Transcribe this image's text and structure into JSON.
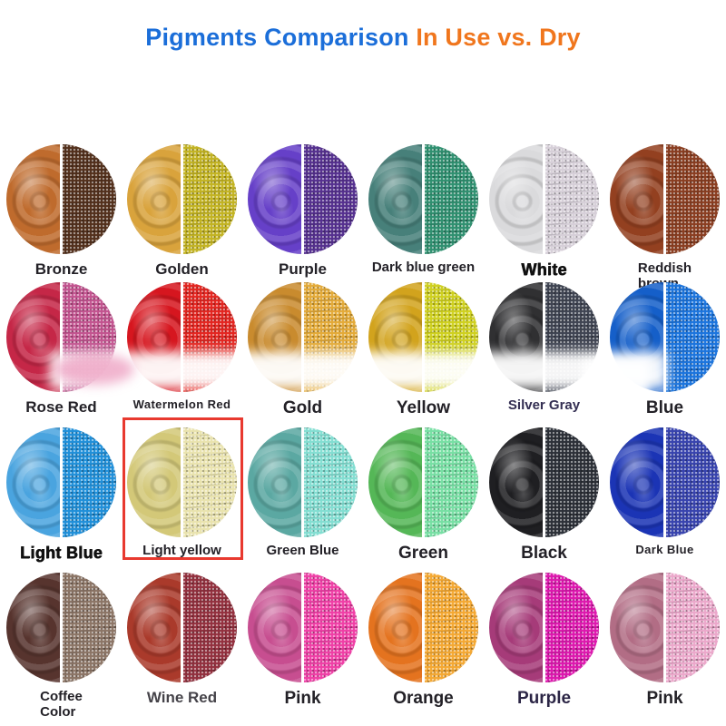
{
  "title": {
    "part1": "Pigments Comparison",
    "part2": " In Use vs. Dry",
    "part1_color": "#1b6ed9",
    "part2_color": "#f0761d"
  },
  "comparison": {
    "left_half_meaning": "In Use",
    "right_half_meaning": "Dry"
  },
  "highlight": {
    "pigment": "Light yellow",
    "border_color": "#e8392f"
  },
  "pigments": [
    {
      "label": "Bronze",
      "wet_color": "#bf6b2d",
      "dry_color": "#53301c"
    },
    {
      "label": "Golden",
      "wet_color": "#d9a33c",
      "dry_color": "#c2b322"
    },
    {
      "label": "Purple",
      "wet_color": "#6640c8",
      "dry_color": "#55308f"
    },
    {
      "label": "Dark blue green",
      "wet_color": "#47807a",
      "dry_color": "#2f9070"
    },
    {
      "label": "White",
      "wet_color": "#dadadc",
      "dry_color": "#d6cfd8"
    },
    {
      "label": "Reddish\nbrown",
      "wet_color": "#934020",
      "dry_color": "#8a3d20"
    },
    {
      "label": "Rose Red",
      "wet_color": "#c52747",
      "dry_color": "#c2538f"
    },
    {
      "label": "Watermelon Red",
      "wet_color": "#d6161f",
      "dry_color": "#e32520"
    },
    {
      "label": "Gold",
      "wet_color": "#c98b2e",
      "dry_color": "#e3aa38"
    },
    {
      "label": "Yellow",
      "wet_color": "#d2a31d",
      "dry_color": "#cfd01f"
    },
    {
      "label": "Silver Gray",
      "wet_color": "#303032",
      "dry_color": "#3f4452",
      "label_color": "#332e52"
    },
    {
      "label": "Blue",
      "wet_color": "#155fc9",
      "dry_color": "#1b74dd"
    },
    {
      "label": "Light Blue",
      "wet_color": "#4aa4df",
      "dry_color": "#1f8fd9"
    },
    {
      "label": "Light yellow",
      "wet_color": "#d3c878",
      "dry_color": "#e9e3ae"
    },
    {
      "label": "Green Blue",
      "wet_color": "#5ba8a2",
      "dry_color": "#83ded2"
    },
    {
      "label": "Green",
      "wet_color": "#55b757",
      "dry_color": "#77dfa4"
    },
    {
      "label": "Black",
      "wet_color": "#1f1f22",
      "dry_color": "#2c3038"
    },
    {
      "label": "Dark Blue",
      "wet_color": "#1b34b5",
      "dry_color": "#3743ae"
    },
    {
      "label": "Coffee\nColor",
      "wet_color": "#57342e",
      "dry_color": "#8c7566"
    },
    {
      "label": "Wine Red",
      "wet_color": "#aa3a2b",
      "dry_color": "#93303e",
      "label_color": "#454349"
    },
    {
      "label": "Pink",
      "wet_color": "#c74e90",
      "dry_color": "#ef3fa6"
    },
    {
      "label": "Orange",
      "wet_color": "#e4731f",
      "dry_color": "#f4a832"
    },
    {
      "label": "Purple",
      "wet_color": "#a63b79",
      "dry_color": "#dd17ae",
      "label_color": "#2b2545"
    },
    {
      "label": "Pink",
      "wet_color": "#b26d85",
      "dry_color": "#eba8cb"
    }
  ]
}
